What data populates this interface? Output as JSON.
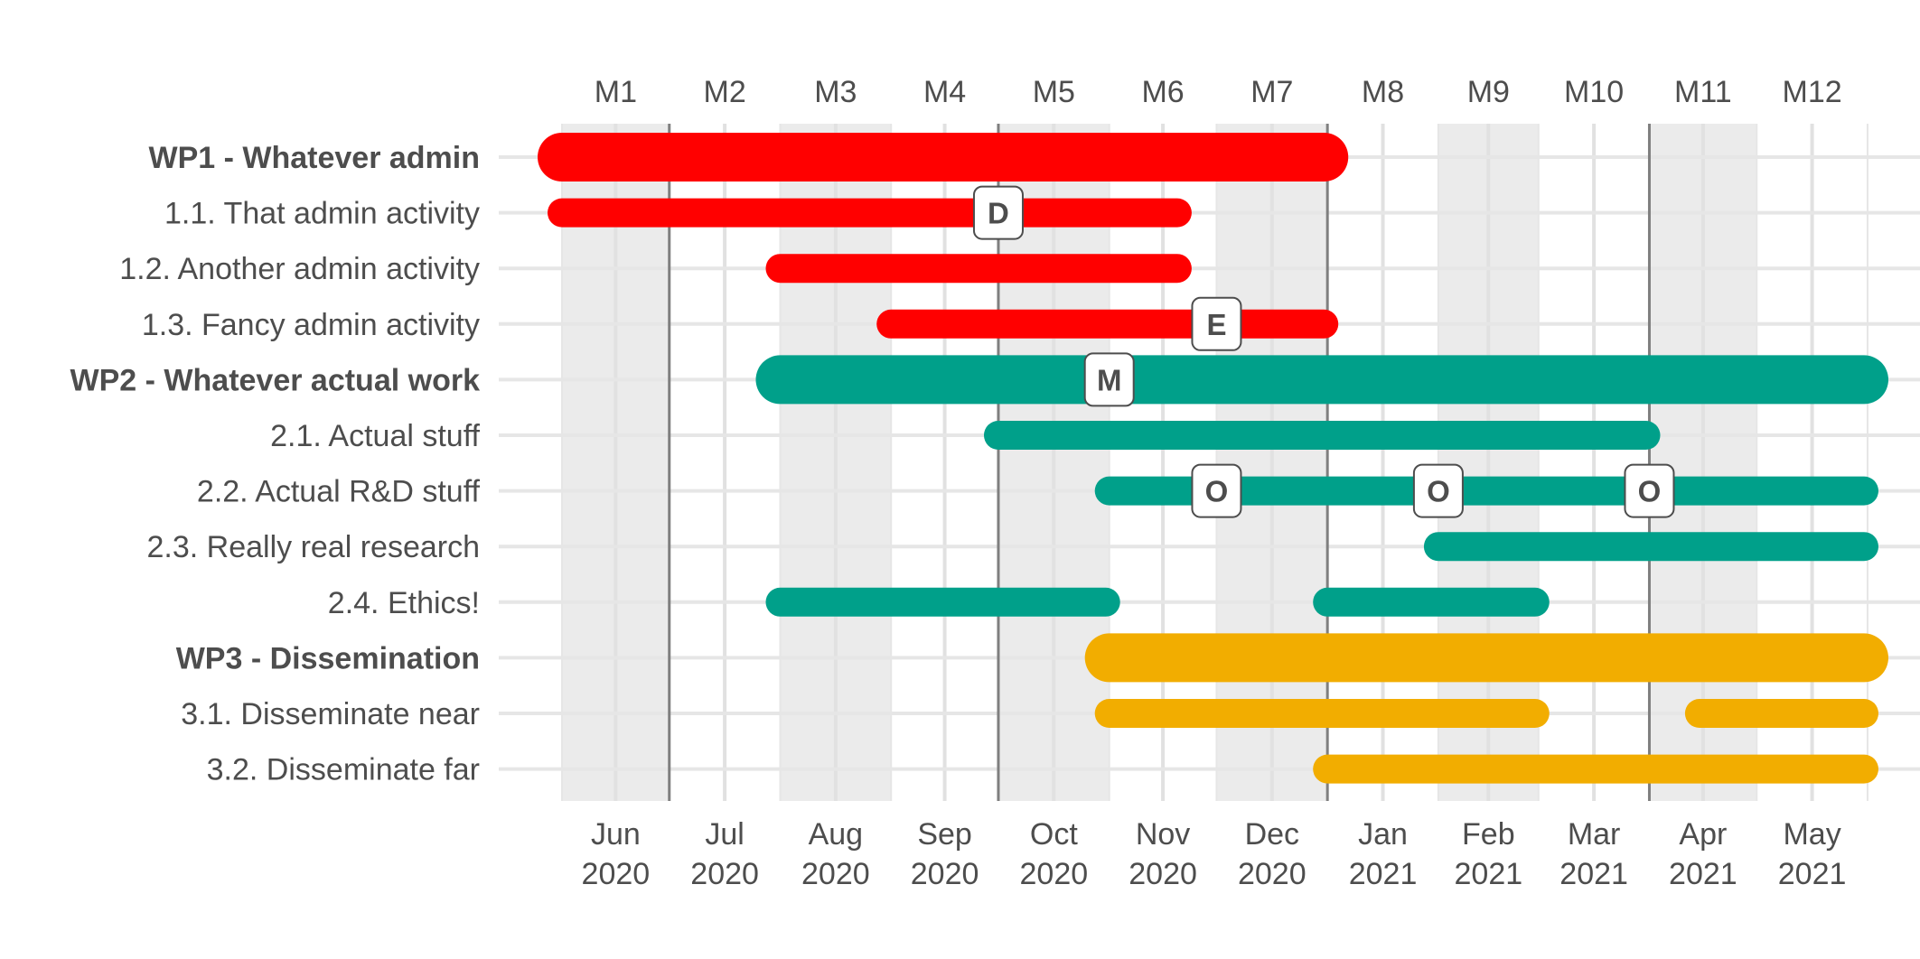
{
  "chart_data": {
    "type": "gantt",
    "x_axis_top": {
      "labels": [
        "M1",
        "M2",
        "M3",
        "M4",
        "M5",
        "M6",
        "M7",
        "M8",
        "M9",
        "M10",
        "M11",
        "M12"
      ]
    },
    "x_axis_bottom": {
      "labels": [
        [
          "Jun",
          "2020"
        ],
        [
          "Jul",
          "2020"
        ],
        [
          "Aug",
          "2020"
        ],
        [
          "Sep",
          "2020"
        ],
        [
          "Oct",
          "2020"
        ],
        [
          "Nov",
          "2020"
        ],
        [
          "Dec",
          "2020"
        ],
        [
          "Jan",
          "2021"
        ],
        [
          "Feb",
          "2021"
        ],
        [
          "Mar",
          "2021"
        ],
        [
          "Apr",
          "2021"
        ],
        [
          "May",
          "2021"
        ]
      ]
    },
    "xlim": [
      "2020-05-15",
      "2021-05-31"
    ],
    "quarter_lines": [
      "2020-07-01",
      "2020-10-01",
      "2021-01-01",
      "2021-04-01"
    ],
    "shaded_periods": [
      [
        "2020-06-01",
        "2020-07-01"
      ],
      [
        "2020-08-01",
        "2020-09-01"
      ],
      [
        "2020-10-01",
        "2020-11-01"
      ],
      [
        "2020-12-01",
        "2021-01-01"
      ],
      [
        "2021-02-01",
        "2021-03-01"
      ],
      [
        "2021-04-01",
        "2021-05-01"
      ]
    ],
    "colors": {
      "WP1": "#ff0000",
      "WP2": "#00a08a",
      "WP3": "#f2ad00"
    },
    "rows": [
      {
        "label": "WP1 - Whatever admin",
        "wp": "WP1",
        "bold": true,
        "segments": [
          [
            "2020-06-01",
            "2020-12-31"
          ]
        ]
      },
      {
        "label": "1.1. That admin activity",
        "wp": "WP1",
        "bold": false,
        "segments": [
          [
            "2020-06-01",
            "2020-11-20"
          ]
        ]
      },
      {
        "label": "1.2. Another admin activity",
        "wp": "WP1",
        "bold": false,
        "segments": [
          [
            "2020-08-01",
            "2020-11-20"
          ]
        ]
      },
      {
        "label": "1.3. Fancy admin activity",
        "wp": "WP1",
        "bold": false,
        "segments": [
          [
            "2020-09-01",
            "2020-12-31"
          ]
        ]
      },
      {
        "label": "WP2 - Whatever actual work",
        "wp": "WP2",
        "bold": true,
        "segments": [
          [
            "2020-08-01",
            "2021-05-31"
          ]
        ]
      },
      {
        "label": "2.1. Actual stuff",
        "wp": "WP2",
        "bold": false,
        "segments": [
          [
            "2020-10-01",
            "2021-03-31"
          ]
        ]
      },
      {
        "label": "2.2. Actual R&D stuff",
        "wp": "WP2",
        "bold": false,
        "segments": [
          [
            "2020-11-01",
            "2021-05-31"
          ]
        ]
      },
      {
        "label": "2.3. Really real research",
        "wp": "WP2",
        "bold": false,
        "segments": [
          [
            "2021-02-01",
            "2021-05-31"
          ]
        ]
      },
      {
        "label": "2.4. Ethics!",
        "wp": "WP2",
        "bold": false,
        "segments": [
          [
            "2020-08-01",
            "2020-10-31"
          ],
          [
            "2021-01-01",
            "2021-02-28"
          ]
        ]
      },
      {
        "label": "WP3 - Dissemination",
        "wp": "WP3",
        "bold": true,
        "segments": [
          [
            "2020-11-01",
            "2021-05-31"
          ]
        ]
      },
      {
        "label": "3.1. Disseminate near",
        "wp": "WP3",
        "bold": false,
        "segments": [
          [
            "2020-11-01",
            "2021-02-28"
          ],
          [
            "2021-04-15",
            "2021-05-31"
          ]
        ]
      },
      {
        "label": "3.2. Disseminate far",
        "wp": "WP3",
        "bold": false,
        "segments": [
          [
            "2021-01-01",
            "2021-05-31"
          ]
        ]
      }
    ],
    "markers": [
      {
        "row": 1,
        "date": "2020-10-01",
        "label": "D"
      },
      {
        "row": 3,
        "date": "2020-12-01",
        "label": "E"
      },
      {
        "row": 4,
        "date": "2020-11-01",
        "label": "M"
      },
      {
        "row": 6,
        "date": "2020-12-01",
        "label": "O"
      },
      {
        "row": 6,
        "date": "2021-02-01",
        "label": "O"
      },
      {
        "row": 6,
        "date": "2021-04-01",
        "label": "O"
      }
    ]
  }
}
